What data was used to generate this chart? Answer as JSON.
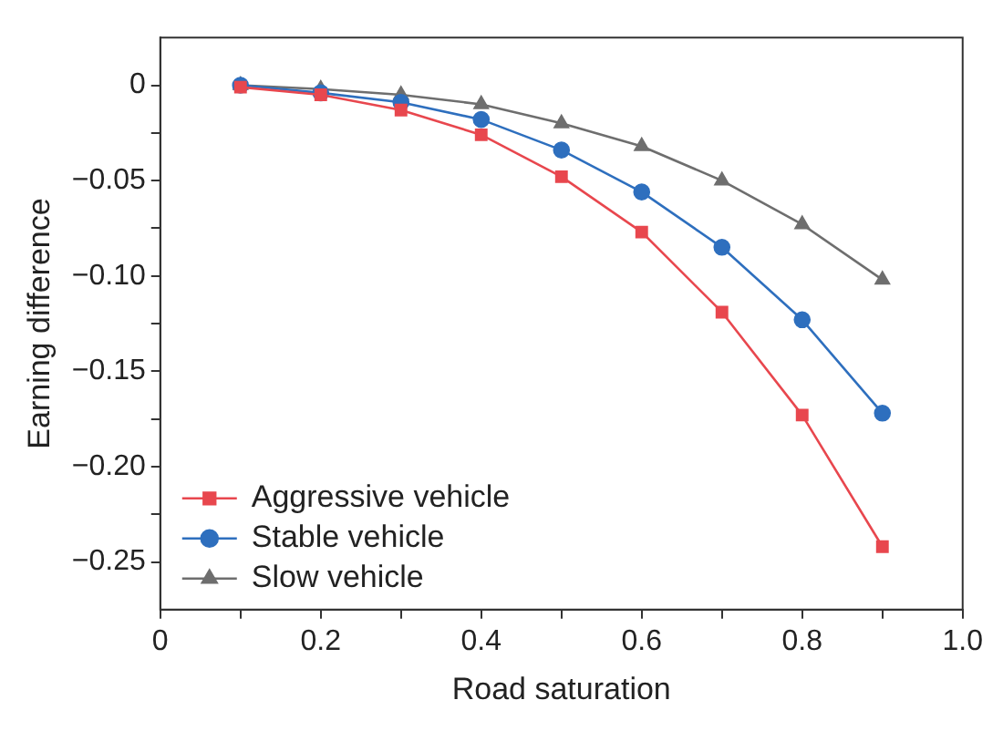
{
  "chart_data": {
    "type": "line",
    "xlabel": "Road saturation",
    "ylabel": "Earning difference",
    "x": [
      0.1,
      0.2,
      0.3,
      0.4,
      0.5,
      0.6,
      0.7,
      0.8,
      0.9
    ],
    "series": [
      {
        "name": "Aggressive vehicle",
        "color": "#e8474e",
        "marker": "square",
        "values": [
          -0.001,
          -0.005,
          -0.013,
          -0.026,
          -0.048,
          -0.077,
          -0.119,
          -0.173,
          -0.242
        ]
      },
      {
        "name": "Stable vehicle",
        "color": "#2e6fbe",
        "marker": "circle",
        "values": [
          0,
          -0.004,
          -0.009,
          -0.018,
          -0.034,
          -0.056,
          -0.085,
          -0.123,
          -0.172
        ]
      },
      {
        "name": "Slow vehicle",
        "color": "#6e6e6e",
        "marker": "triangle",
        "values": [
          0,
          -0.002,
          -0.005,
          -0.01,
          -0.02,
          -0.032,
          -0.05,
          -0.073,
          -0.102
        ]
      }
    ],
    "xlim": [
      0,
      1
    ],
    "xticks": [
      0,
      {
        "value": 0.1,
        "label": null
      },
      0.2,
      {
        "value": 0.3,
        "label": null
      },
      0.4,
      {
        "value": 0.5,
        "label": null
      },
      0.6,
      {
        "value": 0.7,
        "label": null
      },
      0.8,
      {
        "value": 0.9,
        "label": null
      },
      {
        "value": 1,
        "label": "1.0"
      }
    ],
    "ylim": [
      -0.275,
      0.025
    ],
    "yticks": [
      0,
      {
        "value": -0.025,
        "label": null
      },
      {
        "value": -0.05,
        "label": "−0.05"
      },
      {
        "value": -0.075,
        "label": null
      },
      {
        "value": -0.1,
        "label": "−0.10"
      },
      {
        "value": -0.125,
        "label": null
      },
      {
        "value": -0.15,
        "label": "−0.15"
      },
      {
        "value": -0.175,
        "label": null
      },
      {
        "value": -0.2,
        "label": "−0.20"
      },
      {
        "value": -0.225,
        "label": null
      },
      {
        "value": -0.25,
        "label": "−0.25"
      }
    ],
    "grid": false,
    "legend": "bottom left",
    "line_style": "solid"
  }
}
